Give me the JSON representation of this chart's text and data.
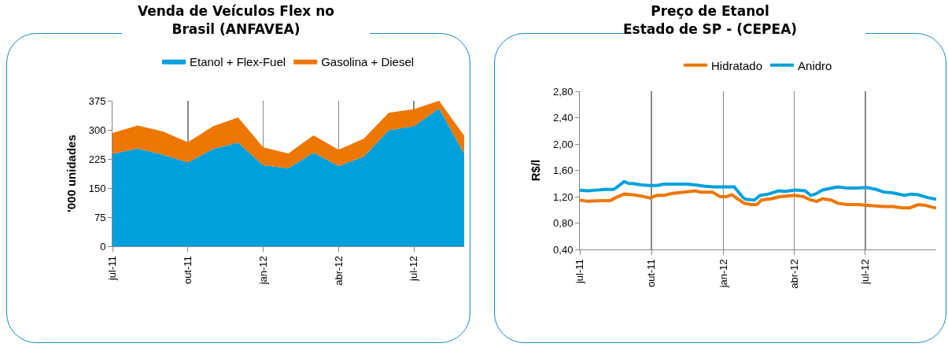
{
  "chart_data": [
    {
      "type": "area",
      "title": "Venda de Veículos Flex no\nBrasil (ANFAVEA)",
      "ylabel": "'000 unidades",
      "stacked": true,
      "grid": "x",
      "legend": "top",
      "categories": [
        "jul-11",
        null,
        null,
        "out-11",
        null,
        null,
        "jan-12",
        null,
        null,
        "abr-12",
        null,
        null,
        "jul-12",
        null,
        null
      ],
      "ylim": [
        0,
        375
      ],
      "yticks": [
        0,
        75,
        150,
        225,
        300,
        375
      ],
      "series": [
        {
          "name": "Etanol + Flex-Fuel",
          "color": "#00a0dc",
          "values": [
            238,
            252,
            236,
            216,
            251,
            267,
            209,
            201,
            241,
            207,
            231,
            299,
            309,
            355,
            239
          ]
        },
        {
          "name": "Gasolina + Diesel",
          "color": "#ed7703",
          "values": [
            54,
            59,
            60,
            52,
            58,
            65,
            46,
            38,
            45,
            42,
            46,
            45,
            44,
            20,
            46
          ]
        }
      ]
    },
    {
      "type": "line",
      "title": "Preço de Etanol\nEstado de SP - (CEPEA)",
      "ylabel": "R$/l",
      "grid": "x",
      "legend": "top",
      "xlim": [
        "2011-07-01",
        "2012-09-30"
      ],
      "xticks": [
        {
          "value": "2011-07-01",
          "label": "jul-11"
        },
        {
          "value": "2011-10-01",
          "label": "out-11"
        },
        {
          "value": "2012-01-01",
          "label": "jan-12"
        },
        {
          "value": "2012-04-01",
          "label": "abr-12"
        },
        {
          "value": "2012-07-01",
          "label": "jul-12"
        }
      ],
      "ylim": [
        0.4,
        2.8
      ],
      "yticks": [
        {
          "value": 0.4,
          "label": "0,40"
        },
        {
          "value": 0.8,
          "label": "0,80"
        },
        {
          "value": 1.2,
          "label": "1,20"
        },
        {
          "value": 1.6,
          "label": "1,60"
        },
        {
          "value": 2.0,
          "label": "2,00"
        },
        {
          "value": 2.4,
          "label": "2,40"
        },
        {
          "value": 2.8,
          "label": "2,80"
        }
      ],
      "series": [
        {
          "name": "Hidratado",
          "color": "#ed7703",
          "x": [
            "2011-07-01",
            "2011-07-11",
            "2011-07-29",
            "2011-08-09",
            "2011-08-15",
            "2011-08-27",
            "2011-09-07",
            "2011-09-18",
            "2011-09-29",
            "2011-10-08",
            "2011-10-17",
            "2011-10-28",
            "2011-11-11",
            "2011-11-26",
            "2011-12-03",
            "2011-12-18",
            "2011-12-28",
            "2012-01-05",
            "2012-01-12",
            "2012-01-19",
            "2012-01-28",
            "2012-02-06",
            "2012-02-13",
            "2012-02-19",
            "2012-03-03",
            "2012-03-13",
            "2012-04-02",
            "2012-04-13",
            "2012-04-22",
            "2012-04-30",
            "2012-05-07",
            "2012-05-18",
            "2012-05-27",
            "2012-06-08",
            "2012-06-23",
            "2012-07-03",
            "2012-07-15",
            "2012-07-25",
            "2012-08-05",
            "2012-08-18",
            "2012-08-27",
            "2012-09-07",
            "2012-09-16",
            "2012-09-25",
            "2012-09-30"
          ],
          "values": [
            1.15,
            1.13,
            1.14,
            1.14,
            1.18,
            1.24,
            1.23,
            1.21,
            1.18,
            1.22,
            1.22,
            1.25,
            1.27,
            1.29,
            1.27,
            1.27,
            1.2,
            1.2,
            1.23,
            1.17,
            1.1,
            1.08,
            1.08,
            1.15,
            1.17,
            1.2,
            1.22,
            1.2,
            1.15,
            1.13,
            1.17,
            1.15,
            1.1,
            1.08,
            1.08,
            1.07,
            1.06,
            1.05,
            1.05,
            1.03,
            1.03,
            1.08,
            1.07,
            1.04,
            1.03
          ]
        },
        {
          "name": "Anidro",
          "color": "#00a0dc",
          "x": [
            "2011-07-01",
            "2011-07-11",
            "2011-07-22",
            "2011-08-02",
            "2011-08-13",
            "2011-08-16",
            "2011-08-27",
            "2011-09-02",
            "2011-09-07",
            "2011-09-18",
            "2011-09-29",
            "2011-10-08",
            "2011-10-17",
            "2011-10-31",
            "2011-11-15",
            "2011-11-26",
            "2011-12-07",
            "2011-12-18",
            "2011-12-28",
            "2012-01-08",
            "2012-01-15",
            "2012-01-26",
            "2012-01-30",
            "2012-02-10",
            "2012-02-17",
            "2012-02-28",
            "2012-03-12",
            "2012-03-21",
            "2012-04-02",
            "2012-04-15",
            "2012-04-22",
            "2012-04-28",
            "2012-05-07",
            "2012-05-14",
            "2012-05-27",
            "2012-06-08",
            "2012-06-19",
            "2012-07-03",
            "2012-07-15",
            "2012-07-25",
            "2012-08-05",
            "2012-08-20",
            "2012-08-29",
            "2012-09-07",
            "2012-09-18",
            "2012-09-30"
          ],
          "values": [
            1.3,
            1.29,
            1.3,
            1.31,
            1.31,
            1.33,
            1.43,
            1.4,
            1.4,
            1.38,
            1.37,
            1.37,
            1.39,
            1.39,
            1.39,
            1.38,
            1.36,
            1.35,
            1.35,
            1.35,
            1.35,
            1.19,
            1.16,
            1.15,
            1.22,
            1.24,
            1.29,
            1.28,
            1.3,
            1.29,
            1.22,
            1.24,
            1.3,
            1.32,
            1.35,
            1.33,
            1.33,
            1.34,
            1.31,
            1.27,
            1.26,
            1.22,
            1.24,
            1.23,
            1.19,
            1.16
          ]
        }
      ]
    }
  ]
}
